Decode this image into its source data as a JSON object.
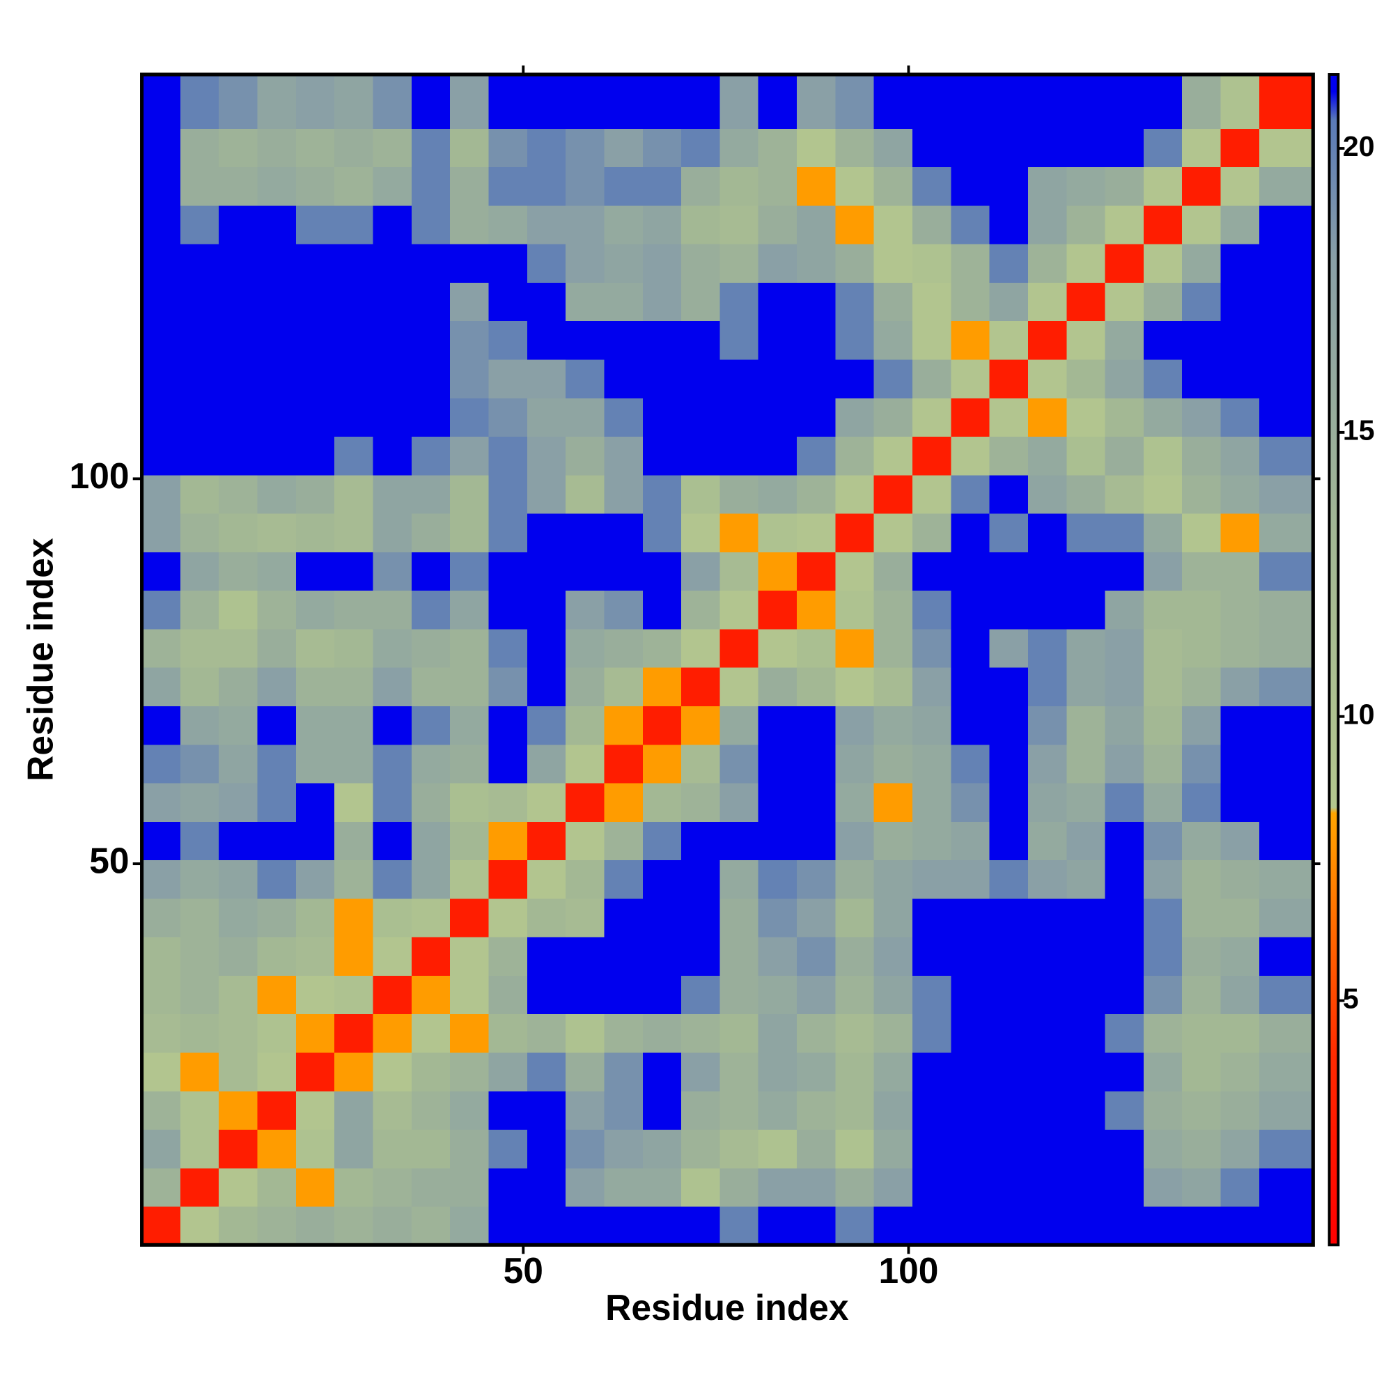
{
  "chart_data": {
    "type": "heatmap",
    "xlabel": "Residue index",
    "ylabel": "Residue index",
    "xlim": [
      0.5,
      152.5
    ],
    "ylim": [
      0.5,
      152.5
    ],
    "xticks": [
      50,
      100
    ],
    "yticks": [
      50,
      100
    ],
    "x_bins": [
      0.5,
      5.5,
      10.5,
      15.5,
      20.5,
      25.5,
      30.5,
      35.5,
      40.5,
      45.5,
      50.5,
      55.5,
      60.5,
      65.5,
      70.5,
      75.5,
      80.5,
      85.5,
      90.5,
      95.5,
      100.5,
      105.5,
      110.5,
      115.5,
      120.5,
      125.5,
      130.5,
      135.5,
      140.5,
      145.5,
      152.5
    ],
    "y_bins": [
      0.5,
      5.5,
      10.5,
      15.5,
      20.5,
      25.5,
      30.5,
      35.5,
      40.5,
      45.5,
      50.5,
      55.5,
      60.5,
      65.5,
      70.5,
      75.5,
      80.5,
      85.5,
      90.5,
      95.5,
      100.5,
      105.5,
      110.5,
      115.5,
      120.5,
      125.5,
      130.5,
      135.5,
      140.5,
      145.5,
      152.5
    ],
    "values": [
      [
        3,
        9,
        13,
        14,
        15,
        14,
        15,
        14,
        16,
        22,
        22,
        22,
        22,
        22,
        22,
        20,
        22,
        22,
        20,
        22,
        22,
        22,
        22,
        22,
        22,
        22,
        22,
        22,
        22,
        22
      ],
      [
        14,
        3,
        9,
        13,
        8,
        13,
        14,
        15,
        15,
        22,
        22,
        18,
        16,
        16,
        10,
        15,
        18,
        18,
        15,
        18,
        22,
        22,
        22,
        22,
        22,
        22,
        18,
        17,
        20,
        22
      ],
      [
        17,
        10,
        3,
        8,
        10,
        17,
        13,
        13,
        15,
        20,
        22,
        19,
        18,
        17,
        14,
        12,
        10,
        15,
        10,
        16,
        22,
        22,
        22,
        22,
        22,
        22,
        16,
        15,
        17,
        20
      ],
      [
        14,
        10,
        8,
        3,
        9,
        17,
        12,
        14,
        16,
        22,
        22,
        18,
        19,
        22,
        15,
        14,
        16,
        14,
        13,
        17,
        22,
        22,
        22,
        22,
        22,
        20,
        15,
        14,
        15,
        17
      ],
      [
        9,
        8,
        12,
        9,
        3,
        8,
        9,
        13,
        14,
        17,
        20,
        15,
        19,
        22,
        18,
        14,
        17,
        16,
        13,
        16,
        22,
        22,
        22,
        22,
        22,
        21,
        16,
        13,
        14,
        16
      ],
      [
        12,
        13,
        12,
        10,
        8,
        3,
        8,
        9,
        8,
        13,
        14,
        10,
        14,
        15,
        14,
        13,
        17,
        14,
        12,
        14,
        20,
        22,
        22,
        22,
        22,
        20,
        14,
        13,
        13,
        15
      ],
      [
        13,
        14,
        12,
        8,
        9,
        10,
        3,
        8,
        9,
        15,
        22,
        22,
        22,
        22,
        20,
        15,
        16,
        18,
        14,
        17,
        20,
        22,
        22,
        22,
        22,
        22,
        19,
        14,
        17,
        20
      ],
      [
        13,
        14,
        15,
        13,
        12,
        8,
        9,
        3,
        9,
        14,
        22,
        22,
        22,
        22,
        21,
        15,
        18,
        19,
        15,
        18,
        22,
        22,
        22,
        22,
        22,
        22,
        20,
        15,
        16,
        21
      ],
      [
        15,
        14,
        16,
        15,
        13,
        8,
        11,
        10,
        3,
        9,
        13,
        12,
        22,
        22,
        21,
        15,
        19,
        18,
        13,
        17,
        22,
        22,
        22,
        22,
        22,
        22,
        20,
        14,
        14,
        17
      ],
      [
        18,
        16,
        17,
        20,
        18,
        14,
        20,
        17,
        10,
        3,
        9,
        13,
        20,
        22,
        21,
        16,
        20,
        19,
        15,
        17,
        18,
        18,
        20,
        18,
        17,
        22,
        18,
        14,
        15,
        16
      ],
      [
        22,
        20,
        22,
        21,
        21,
        15,
        21,
        17,
        13,
        8,
        3,
        9,
        14,
        20,
        22,
        22,
        22,
        21,
        18,
        15,
        16,
        17,
        21,
        16,
        18,
        22,
        19,
        16,
        18,
        22
      ],
      [
        18,
        17,
        18,
        20,
        22,
        9,
        20,
        15,
        11,
        12,
        9,
        3,
        8,
        13,
        14,
        18,
        22,
        21,
        16,
        8,
        16,
        19,
        22,
        17,
        16,
        20,
        16,
        20,
        22,
        21
      ],
      [
        20,
        19,
        17,
        20,
        16,
        16,
        20,
        16,
        15,
        22,
        17,
        9,
        3,
        8,
        12,
        19,
        22,
        21,
        17,
        15,
        16,
        20,
        22,
        18,
        14,
        18,
        14,
        19,
        22,
        22
      ],
      [
        22,
        17,
        16,
        21,
        16,
        16,
        21,
        20,
        16,
        22,
        20,
        13,
        8,
        3,
        8,
        16,
        22,
        21,
        18,
        16,
        17,
        21,
        22,
        19,
        14,
        17,
        13,
        18,
        22,
        22
      ],
      [
        17,
        13,
        15,
        18,
        14,
        14,
        18,
        14,
        14,
        19,
        22,
        15,
        12,
        8,
        3,
        9,
        15,
        13,
        9,
        12,
        18,
        22,
        22,
        20,
        17,
        18,
        12,
        14,
        18,
        19
      ],
      [
        14,
        12,
        12,
        15,
        12,
        13,
        16,
        15,
        14,
        20,
        22,
        16,
        15,
        14,
        9,
        3,
        9,
        11,
        8,
        14,
        19,
        22,
        18,
        20,
        17,
        18,
        12,
        13,
        14,
        15
      ],
      [
        20,
        14,
        10,
        14,
        16,
        15,
        15,
        20,
        17,
        22,
        22,
        18,
        19,
        22,
        14,
        9,
        3,
        8,
        10,
        14,
        20,
        21,
        22,
        22,
        21,
        17,
        13,
        13,
        14,
        15
      ],
      [
        22,
        17,
        15,
        16,
        22,
        21,
        19,
        22,
        20,
        22,
        22,
        22,
        22,
        22,
        18,
        12,
        8,
        3,
        9,
        15,
        22,
        22,
        22,
        22,
        22,
        22,
        18,
        14,
        14,
        20
      ],
      [
        18,
        14,
        13,
        12,
        13,
        12,
        17,
        15,
        13,
        20,
        22,
        22,
        22,
        20,
        9,
        8,
        10,
        9,
        3,
        9,
        14,
        22,
        20,
        22,
        20,
        20,
        16,
        9,
        8,
        16
      ],
      [
        18,
        13,
        14,
        16,
        15,
        12,
        17,
        17,
        13,
        20,
        18,
        12,
        18,
        20,
        11,
        15,
        16,
        14,
        9,
        3,
        9,
        20,
        22,
        17,
        15,
        12,
        9,
        14,
        16,
        18
      ],
      [
        22,
        22,
        22,
        22,
        22,
        20,
        22,
        20,
        18,
        20,
        18,
        15,
        18,
        21,
        22,
        22,
        22,
        20,
        14,
        9,
        3,
        9,
        14,
        16,
        11,
        15,
        10,
        15,
        17,
        20
      ],
      [
        22,
        22,
        22,
        22,
        22,
        22,
        22,
        22,
        20,
        19,
        17,
        17,
        20,
        22,
        22,
        22,
        22,
        21,
        17,
        15,
        9,
        3,
        9,
        8,
        9,
        13,
        16,
        18,
        20,
        22
      ],
      [
        22,
        22,
        22,
        22,
        22,
        22,
        22,
        22,
        19,
        18,
        18,
        20,
        22,
        22,
        22,
        21,
        22,
        21,
        22,
        20,
        15,
        9,
        3,
        9,
        13,
        17,
        20,
        22,
        22,
        22
      ],
      [
        22,
        22,
        22,
        22,
        22,
        22,
        22,
        22,
        19,
        20,
        22,
        22,
        22,
        22,
        22,
        20,
        22,
        22,
        20,
        16,
        9,
        8,
        9,
        3,
        9,
        16,
        22,
        22,
        22,
        22
      ],
      [
        22,
        22,
        22,
        22,
        21,
        21,
        22,
        22,
        18,
        21,
        22,
        16,
        16,
        18,
        15,
        20,
        22,
        22,
        20,
        15,
        9,
        14,
        17,
        9,
        3,
        9,
        15,
        20,
        22,
        22
      ],
      [
        22,
        22,
        22,
        22,
        22,
        22,
        22,
        22,
        22,
        22,
        20,
        18,
        17,
        18,
        15,
        14,
        18,
        17,
        15,
        9,
        10,
        14,
        20,
        14,
        9,
        3,
        9,
        16,
        22,
        22
      ],
      [
        21,
        20,
        22,
        22,
        20,
        20,
        22,
        20,
        15,
        16,
        18,
        18,
        16,
        17,
        13,
        12,
        15,
        17,
        8,
        9,
        15,
        20,
        22,
        17,
        14,
        9,
        3,
        9,
        16,
        22
      ],
      [
        22,
        15,
        15,
        16,
        15,
        14,
        16,
        20,
        15,
        20,
        20,
        19,
        20,
        20,
        15,
        13,
        14,
        8,
        9,
        14,
        20,
        22,
        22,
        17,
        16,
        15,
        9,
        3,
        9,
        16
      ],
      [
        22,
        15,
        14,
        15,
        14,
        15,
        14,
        20,
        13,
        19,
        20,
        19,
        18,
        19,
        20,
        16,
        14,
        9,
        14,
        17,
        22,
        22,
        22,
        22,
        22,
        22,
        20,
        9,
        3,
        9
      ],
      [
        22,
        20,
        19,
        17,
        18,
        17,
        19,
        22,
        18,
        21,
        22,
        22,
        22,
        22,
        22,
        18,
        22,
        18,
        19,
        21,
        22,
        22,
        22,
        22,
        22,
        22,
        22,
        15,
        10,
        3
      ]
    ],
    "colorscale": [
      {
        "value": 0.7,
        "color": "#ff0000"
      },
      {
        "value": 4,
        "color": "#ff2a00"
      },
      {
        "value": 8.3,
        "color": "#ffa500"
      },
      {
        "value": 8.4,
        "color": "#b4c78e"
      },
      {
        "value": 13,
        "color": "#a3b894"
      },
      {
        "value": 18,
        "color": "#8aa0a6"
      },
      {
        "value": 20.5,
        "color": "#5a7ab8"
      },
      {
        "value": 21,
        "color": "#0000ee"
      }
    ],
    "colorbar_lim": [
      0.7,
      21.3
    ],
    "colorbar_ticks": [
      5,
      10,
      15,
      20
    ]
  }
}
